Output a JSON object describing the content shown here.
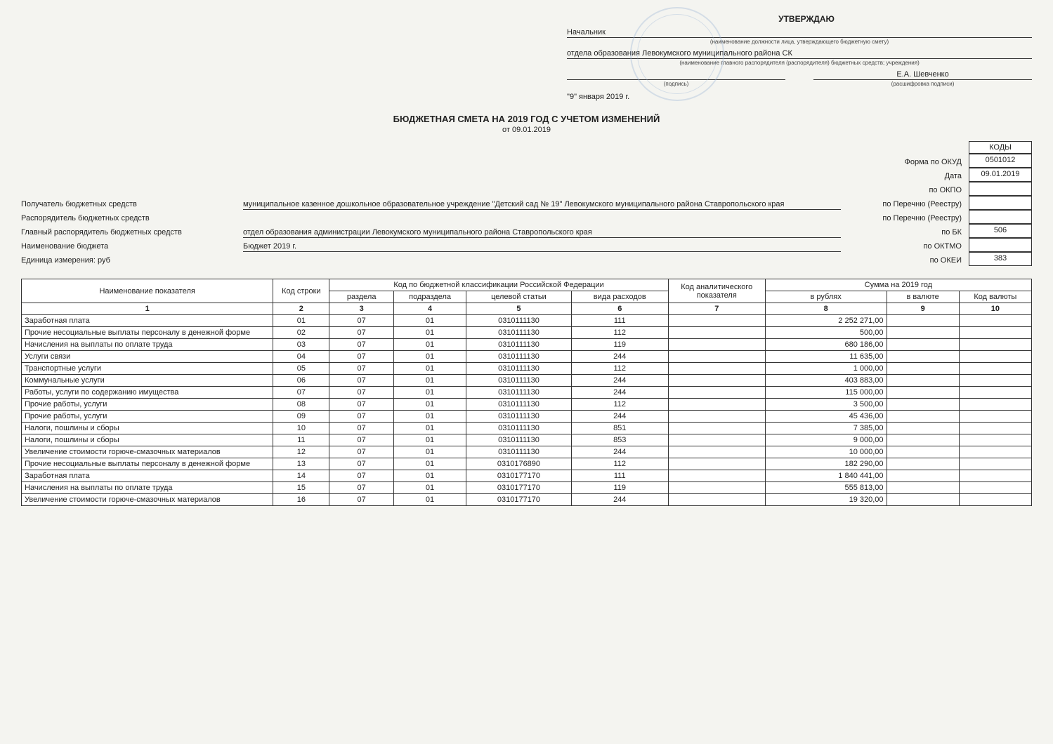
{
  "approval": {
    "approve": "УТВЕРЖДАЮ",
    "position_line": "Начальник",
    "position_caption": "(наименование должности лица, утверждающего бюджетную смету)",
    "org_line": "отдела образования Левокумского муниципального района СК",
    "org_caption": "(наименование главного распорядителя (распорядителя) бюджетных средств; учреждения)",
    "sign_caption": "(подпись)",
    "decoded": "Е.А. Шевченко",
    "decoded_caption": "(расшифровка подписи)",
    "date": "\"9\" января 2019 г."
  },
  "title": "БЮДЖЕТНАЯ СМЕТА НА 2019  ГОД С УЧЕТОМ ИЗМЕНЕНИЙ",
  "title_date": "от 09.01.2019",
  "codes_header": "КОДЫ",
  "header_rows": [
    {
      "label": "",
      "value": "",
      "rlabel": "Форма по ОКУД",
      "code": "0501012"
    },
    {
      "label": "",
      "value": "",
      "rlabel": "Дата",
      "code": "09.01.2019"
    },
    {
      "label": "",
      "value": "",
      "rlabel": "по ОКПО",
      "code": ""
    },
    {
      "label": "Получатель бюджетных средств",
      "value": "муниципальное казенное дошкольное образовательное учреждение \"Детский сад № 19\" Левокумского муниципального района Ставропольского края",
      "rlabel": "по Перечню (Реестру)",
      "code": ""
    },
    {
      "label": "Распорядитель бюджетных средств",
      "value": "",
      "rlabel": "по Перечню (Реестру)",
      "code": ""
    },
    {
      "label": "Главный распорядитель бюджетных средств",
      "value": "отдел образования администрации Левокумского муниципального района Ставропольского края",
      "rlabel": "по БК",
      "code": "506"
    },
    {
      "label": "Наименование бюджета",
      "value": "Бюджет 2019 г.",
      "rlabel": "по ОКТМО",
      "code": ""
    },
    {
      "label": "Единица измерения: руб",
      "value": "",
      "rlabel": "по ОКЕИ",
      "code": "383"
    }
  ],
  "table": {
    "head": {
      "c1": "Наименование показателя",
      "c2": "Код строки",
      "c_group": "Код по бюджетной классификации Российской Федерации",
      "c3": "раздела",
      "c4": "подраздела",
      "c5": "целевой статьи",
      "c6": "вида расходов",
      "c7": "Код аналитического показателя",
      "c_sum": "Сумма на 2019 год",
      "c8": "в рублях",
      "c9": "в валюте",
      "c10": "Код валюты"
    },
    "numrow": [
      "1",
      "2",
      "3",
      "4",
      "5",
      "6",
      "7",
      "8",
      "9",
      "10"
    ],
    "rows": [
      {
        "n": "Заработная плата",
        "k": "01",
        "r": "07",
        "p": "01",
        "cs": "0310111130",
        "vr": "111",
        "a": "",
        "rub": "2 252 271,00",
        "val": "",
        "kv": ""
      },
      {
        "n": "Прочие несоциальные выплаты персоналу в денежной форме",
        "k": "02",
        "r": "07",
        "p": "01",
        "cs": "0310111130",
        "vr": "112",
        "a": "",
        "rub": "500,00",
        "val": "",
        "kv": ""
      },
      {
        "n": "Начисления на выплаты по оплате труда",
        "k": "03",
        "r": "07",
        "p": "01",
        "cs": "0310111130",
        "vr": "119",
        "a": "",
        "rub": "680 186,00",
        "val": "",
        "kv": ""
      },
      {
        "n": "Услуги связи",
        "k": "04",
        "r": "07",
        "p": "01",
        "cs": "0310111130",
        "vr": "244",
        "a": "",
        "rub": "11 635,00",
        "val": "",
        "kv": ""
      },
      {
        "n": "Транспортные услуги",
        "k": "05",
        "r": "07",
        "p": "01",
        "cs": "0310111130",
        "vr": "112",
        "a": "",
        "rub": "1 000,00",
        "val": "",
        "kv": ""
      },
      {
        "n": "Коммунальные услуги",
        "k": "06",
        "r": "07",
        "p": "01",
        "cs": "0310111130",
        "vr": "244",
        "a": "",
        "rub": "403 883,00",
        "val": "",
        "kv": ""
      },
      {
        "n": "Работы, услуги по содержанию имущества",
        "k": "07",
        "r": "07",
        "p": "01",
        "cs": "0310111130",
        "vr": "244",
        "a": "",
        "rub": "115 000,00",
        "val": "",
        "kv": ""
      },
      {
        "n": "Прочие работы, услуги",
        "k": "08",
        "r": "07",
        "p": "01",
        "cs": "0310111130",
        "vr": "112",
        "a": "",
        "rub": "3 500,00",
        "val": "",
        "kv": ""
      },
      {
        "n": "Прочие работы, услуги",
        "k": "09",
        "r": "07",
        "p": "01",
        "cs": "0310111130",
        "vr": "244",
        "a": "",
        "rub": "45 436,00",
        "val": "",
        "kv": ""
      },
      {
        "n": "Налоги, пошлины и сборы",
        "k": "10",
        "r": "07",
        "p": "01",
        "cs": "0310111130",
        "vr": "851",
        "a": "",
        "rub": "7 385,00",
        "val": "",
        "kv": ""
      },
      {
        "n": "Налоги, пошлины и сборы",
        "k": "11",
        "r": "07",
        "p": "01",
        "cs": "0310111130",
        "vr": "853",
        "a": "",
        "rub": "9 000,00",
        "val": "",
        "kv": ""
      },
      {
        "n": "Увеличение стоимости горюче-смазочных материалов",
        "k": "12",
        "r": "07",
        "p": "01",
        "cs": "0310111130",
        "vr": "244",
        "a": "",
        "rub": "10 000,00",
        "val": "",
        "kv": ""
      },
      {
        "n": "Прочие несоциальные выплаты персоналу в денежной форме",
        "k": "13",
        "r": "07",
        "p": "01",
        "cs": "0310176890",
        "vr": "112",
        "a": "",
        "rub": "182 290,00",
        "val": "",
        "kv": ""
      },
      {
        "n": "Заработная плата",
        "k": "14",
        "r": "07",
        "p": "01",
        "cs": "0310177170",
        "vr": "111",
        "a": "",
        "rub": "1 840 441,00",
        "val": "",
        "kv": ""
      },
      {
        "n": "Начисления на выплаты по оплате труда",
        "k": "15",
        "r": "07",
        "p": "01",
        "cs": "0310177170",
        "vr": "119",
        "a": "",
        "rub": "555 813,00",
        "val": "",
        "kv": ""
      },
      {
        "n": "Увеличение стоимости горюче-смазочных материалов",
        "k": "16",
        "r": "07",
        "p": "01",
        "cs": "0310177170",
        "vr": "244",
        "a": "",
        "rub": "19 320,00",
        "val": "",
        "kv": ""
      }
    ]
  }
}
